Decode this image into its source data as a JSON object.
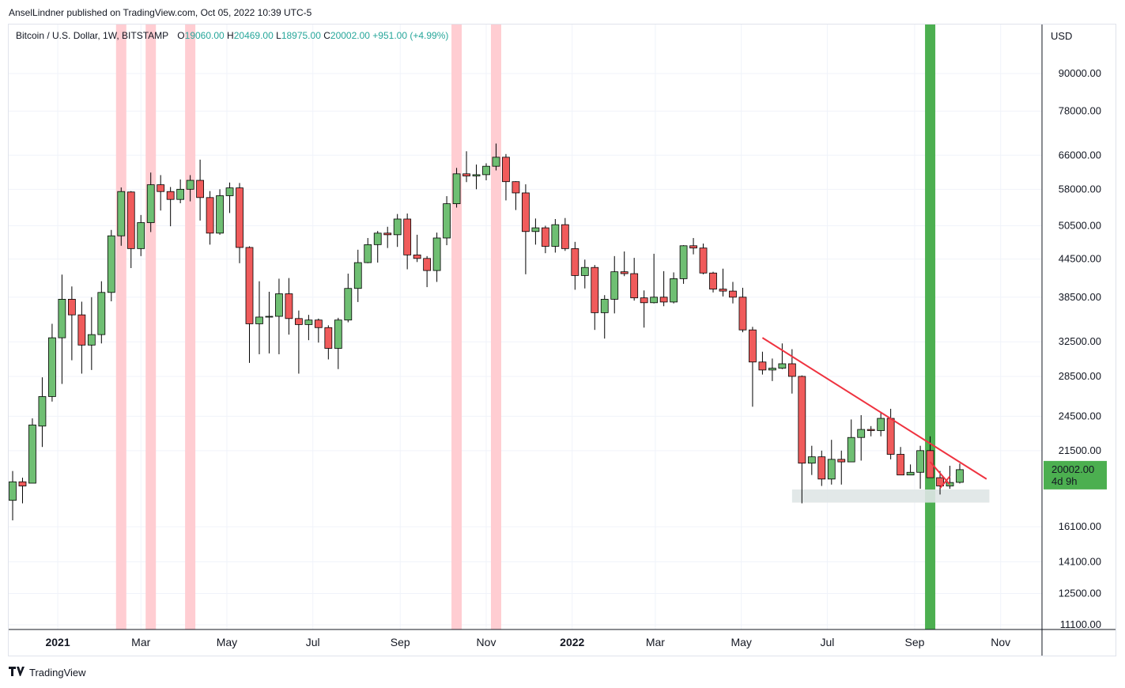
{
  "header": {
    "publish_line": "AnselLindner published on TradingView.com, Oct 05, 2022 10:39 UTC-5"
  },
  "legend": {
    "symbol": "Bitcoin / U.S. Dollar, 1W, BITSTAMP",
    "open_label": "O",
    "open": "19060.00",
    "high_label": "H",
    "high": "20469.00",
    "low_label": "L",
    "low": "18975.00",
    "close_label": "C",
    "close": "20002.00",
    "change": "+951.00 (+4.99%)"
  },
  "footer": {
    "brand": "TradingView"
  },
  "colors": {
    "up": "#4caf50",
    "down": "#ef5350",
    "up_fill": "#6fbf73",
    "down_fill": "#f05b5b",
    "pink_band": "#ffcdd2",
    "green_band": "#4caf50",
    "trendline": "#ef3340",
    "support_zone": "#dfe6e6",
    "price_tag": "#4caf50"
  },
  "chart_data": {
    "type": "candlestick",
    "title": "Bitcoin / U.S. Dollar, 1W, BITSTAMP",
    "y_axis_title": "USD",
    "y_scale": "log",
    "ylim": [
      11100,
      105000
    ],
    "y_ticks": [
      "90000.00",
      "78000.00",
      "66000.00",
      "58000.00",
      "50500.00",
      "44500.00",
      "38500.00",
      "32500.00",
      "28500.00",
      "24500.00",
      "21500.00",
      "16100.00",
      "14100.00",
      "12500.00",
      "11100.00"
    ],
    "x_ticks": [
      {
        "label": "2021",
        "date": "2021-01-01",
        "bold": true
      },
      {
        "label": "Mar",
        "date": "2021-03-01"
      },
      {
        "label": "May",
        "date": "2021-05-01"
      },
      {
        "label": "Jul",
        "date": "2021-07-01"
      },
      {
        "label": "Sep",
        "date": "2021-09-01"
      },
      {
        "label": "Nov",
        "date": "2021-11-01"
      },
      {
        "label": "2022",
        "date": "2022-01-01",
        "bold": true
      },
      {
        "label": "Mar",
        "date": "2022-03-01"
      },
      {
        "label": "May",
        "date": "2022-05-01"
      },
      {
        "label": "Jul",
        "date": "2022-07-01"
      },
      {
        "label": "Sep",
        "date": "2022-09-01"
      },
      {
        "label": "Nov",
        "date": "2022-11-01"
      }
    ],
    "x_start": "2020-11-29",
    "x_end": "2022-11-30",
    "current_price": {
      "value": "20002.00",
      "countdown": "4d 9h",
      "price": 20002
    },
    "highlight_weeks_pink": [
      "2021-02-15",
      "2021-03-08",
      "2021-04-05",
      "2021-10-11",
      "2021-11-08"
    ],
    "highlight_weeks_green": [
      "2022-09-12"
    ],
    "trendlines": [
      {
        "from": {
          "date": "2022-05-16",
          "price": 33000
        },
        "to": {
          "date": "2022-10-22",
          "price": 19300
        }
      },
      {
        "from": {
          "date": "2022-09-12",
          "price": 20600
        },
        "to": {
          "date": "2022-09-26",
          "price": 18900
        }
      },
      {
        "from": {
          "date": "2022-09-19",
          "price": 18650
        },
        "to": {
          "date": "2022-09-26",
          "price": 19500
        }
      }
    ],
    "zones": [
      {
        "from_date": "2022-06-06",
        "to_date": "2022-10-24",
        "low": 17650,
        "high": 18550
      }
    ],
    "candles": [
      {
        "date": "2020-11-30",
        "o": 17800,
        "h": 19900,
        "l": 16500,
        "c": 19100
      },
      {
        "date": "2020-12-07",
        "o": 19100,
        "h": 19400,
        "l": 17600,
        "c": 18800
      },
      {
        "date": "2020-12-14",
        "o": 19000,
        "h": 24300,
        "l": 19000,
        "c": 23700
      },
      {
        "date": "2020-12-21",
        "o": 23600,
        "h": 28400,
        "l": 21800,
        "c": 26400
      },
      {
        "date": "2020-12-28",
        "o": 26400,
        "h": 34800,
        "l": 25900,
        "c": 33000
      },
      {
        "date": "2021-01-04",
        "o": 33000,
        "h": 41950,
        "l": 27700,
        "c": 38200
      },
      {
        "date": "2021-01-11",
        "o": 38200,
        "h": 40100,
        "l": 30300,
        "c": 36000
      },
      {
        "date": "2021-01-18",
        "o": 36000,
        "h": 37850,
        "l": 28800,
        "c": 32100
      },
      {
        "date": "2021-01-25",
        "o": 32100,
        "h": 38500,
        "l": 29200,
        "c": 33400
      },
      {
        "date": "2021-02-01",
        "o": 33400,
        "h": 40900,
        "l": 32300,
        "c": 39200
      },
      {
        "date": "2021-02-08",
        "o": 39200,
        "h": 49700,
        "l": 37900,
        "c": 48600
      },
      {
        "date": "2021-02-15",
        "o": 48600,
        "h": 58400,
        "l": 46800,
        "c": 57500
      },
      {
        "date": "2021-02-22",
        "o": 57400,
        "h": 57600,
        "l": 43000,
        "c": 46300
      },
      {
        "date": "2021-03-01",
        "o": 46300,
        "h": 52600,
        "l": 45000,
        "c": 51100
      },
      {
        "date": "2021-03-08",
        "o": 51100,
        "h": 61800,
        "l": 49300,
        "c": 59000
      },
      {
        "date": "2021-03-15",
        "o": 59000,
        "h": 61200,
        "l": 53500,
        "c": 57500
      },
      {
        "date": "2021-03-22",
        "o": 57500,
        "h": 58500,
        "l": 50400,
        "c": 55800
      },
      {
        "date": "2021-03-29",
        "o": 55800,
        "h": 60200,
        "l": 55000,
        "c": 58000
      },
      {
        "date": "2021-04-05",
        "o": 58000,
        "h": 61200,
        "l": 55400,
        "c": 60000
      },
      {
        "date": "2021-04-12",
        "o": 60000,
        "h": 64900,
        "l": 51500,
        "c": 56200
      },
      {
        "date": "2021-04-19",
        "o": 56200,
        "h": 57600,
        "l": 47000,
        "c": 49100
      },
      {
        "date": "2021-04-26",
        "o": 49100,
        "h": 58000,
        "l": 48800,
        "c": 56600
      },
      {
        "date": "2021-05-03",
        "o": 56600,
        "h": 59500,
        "l": 53000,
        "c": 58300
      },
      {
        "date": "2021-05-10",
        "o": 58300,
        "h": 59400,
        "l": 43800,
        "c": 46500
      },
      {
        "date": "2021-05-17",
        "o": 46500,
        "h": 46700,
        "l": 30000,
        "c": 34800
      },
      {
        "date": "2021-05-24",
        "o": 34800,
        "h": 40900,
        "l": 31000,
        "c": 35700
      },
      {
        "date": "2021-05-31",
        "o": 35700,
        "h": 39300,
        "l": 31100,
        "c": 35800
      },
      {
        "date": "2021-06-07",
        "o": 35800,
        "h": 41300,
        "l": 31000,
        "c": 39000
      },
      {
        "date": "2021-06-14",
        "o": 39000,
        "h": 41400,
        "l": 33400,
        "c": 35500
      },
      {
        "date": "2021-06-21",
        "o": 35500,
        "h": 36600,
        "l": 28800,
        "c": 34700
      },
      {
        "date": "2021-06-28",
        "o": 34700,
        "h": 36000,
        "l": 32700,
        "c": 35300
      },
      {
        "date": "2021-07-05",
        "o": 35300,
        "h": 35500,
        "l": 32400,
        "c": 34300
      },
      {
        "date": "2021-07-12",
        "o": 34300,
        "h": 34600,
        "l": 30400,
        "c": 31700
      },
      {
        "date": "2021-07-19",
        "o": 31700,
        "h": 35600,
        "l": 29300,
        "c": 35300
      },
      {
        "date": "2021-07-26",
        "o": 35300,
        "h": 42100,
        "l": 35000,
        "c": 39800
      },
      {
        "date": "2021-08-02",
        "o": 39800,
        "h": 46100,
        "l": 37800,
        "c": 43900
      },
      {
        "date": "2021-08-09",
        "o": 43900,
        "h": 48200,
        "l": 43800,
        "c": 47000
      },
      {
        "date": "2021-08-16",
        "o": 47000,
        "h": 49500,
        "l": 43900,
        "c": 49100
      },
      {
        "date": "2021-08-23",
        "o": 49100,
        "h": 50300,
        "l": 46400,
        "c": 48800
      },
      {
        "date": "2021-08-30",
        "o": 48800,
        "h": 52800,
        "l": 46600,
        "c": 51800
      },
      {
        "date": "2021-09-06",
        "o": 51800,
        "h": 52900,
        "l": 42800,
        "c": 45200
      },
      {
        "date": "2021-09-13",
        "o": 45200,
        "h": 48800,
        "l": 44000,
        "c": 44600
      },
      {
        "date": "2021-09-20",
        "o": 44600,
        "h": 45000,
        "l": 40000,
        "c": 42600
      },
      {
        "date": "2021-09-27",
        "o": 42600,
        "h": 49200,
        "l": 40800,
        "c": 48200
      },
      {
        "date": "2021-10-04",
        "o": 48200,
        "h": 56500,
        "l": 46900,
        "c": 54900
      },
      {
        "date": "2021-10-11",
        "o": 54900,
        "h": 62900,
        "l": 54100,
        "c": 61500
      },
      {
        "date": "2021-10-18",
        "o": 61500,
        "h": 67000,
        "l": 59600,
        "c": 61000
      },
      {
        "date": "2021-10-25",
        "o": 61000,
        "h": 63700,
        "l": 58000,
        "c": 61300
      },
      {
        "date": "2021-11-01",
        "o": 61300,
        "h": 64000,
        "l": 60000,
        "c": 63300
      },
      {
        "date": "2021-11-08",
        "o": 63300,
        "h": 69000,
        "l": 62300,
        "c": 65500
      },
      {
        "date": "2021-11-15",
        "o": 65500,
        "h": 66300,
        "l": 55600,
        "c": 59700
      },
      {
        "date": "2021-11-22",
        "o": 59700,
        "h": 59800,
        "l": 53600,
        "c": 57200
      },
      {
        "date": "2021-11-29",
        "o": 57200,
        "h": 59100,
        "l": 42000,
        "c": 49400
      },
      {
        "date": "2021-12-06",
        "o": 49400,
        "h": 51900,
        "l": 47000,
        "c": 50100
      },
      {
        "date": "2021-12-13",
        "o": 50100,
        "h": 50500,
        "l": 45500,
        "c": 46700
      },
      {
        "date": "2021-12-20",
        "o": 46700,
        "h": 51800,
        "l": 45600,
        "c": 50700
      },
      {
        "date": "2021-12-27",
        "o": 50700,
        "h": 52000,
        "l": 45900,
        "c": 46300
      },
      {
        "date": "2022-01-03",
        "o": 46300,
        "h": 47500,
        "l": 39600,
        "c": 41800
      },
      {
        "date": "2022-01-10",
        "o": 41800,
        "h": 44400,
        "l": 39800,
        "c": 43100
      },
      {
        "date": "2022-01-17",
        "o": 43100,
        "h": 43500,
        "l": 34000,
        "c": 36300
      },
      {
        "date": "2022-01-24",
        "o": 36300,
        "h": 38800,
        "l": 32900,
        "c": 38200
      },
      {
        "date": "2022-01-31",
        "o": 38200,
        "h": 45000,
        "l": 36200,
        "c": 42400
      },
      {
        "date": "2022-02-07",
        "o": 42400,
        "h": 45800,
        "l": 41700,
        "c": 42100
      },
      {
        "date": "2022-02-14",
        "o": 42100,
        "h": 44700,
        "l": 38000,
        "c": 38400
      },
      {
        "date": "2022-02-21",
        "o": 38400,
        "h": 39500,
        "l": 34300,
        "c": 37700
      },
      {
        "date": "2022-02-28",
        "o": 37700,
        "h": 45400,
        "l": 37600,
        "c": 38500
      },
      {
        "date": "2022-03-07",
        "o": 38500,
        "h": 42500,
        "l": 37200,
        "c": 37800
      },
      {
        "date": "2022-03-14",
        "o": 37800,
        "h": 42300,
        "l": 37600,
        "c": 41300
      },
      {
        "date": "2022-03-21",
        "o": 41300,
        "h": 46900,
        "l": 40500,
        "c": 46800
      },
      {
        "date": "2022-03-28",
        "o": 46800,
        "h": 48200,
        "l": 45300,
        "c": 46400
      },
      {
        "date": "2022-04-04",
        "o": 46400,
        "h": 47200,
        "l": 42000,
        "c": 42200
      },
      {
        "date": "2022-04-11",
        "o": 42200,
        "h": 42400,
        "l": 39200,
        "c": 39700
      },
      {
        "date": "2022-04-18",
        "o": 39700,
        "h": 42900,
        "l": 38600,
        "c": 39400
      },
      {
        "date": "2022-04-25",
        "o": 39400,
        "h": 40800,
        "l": 37600,
        "c": 38500
      },
      {
        "date": "2022-05-02",
        "o": 38500,
        "h": 39900,
        "l": 33700,
        "c": 34000
      },
      {
        "date": "2022-05-09",
        "o": 34000,
        "h": 34400,
        "l": 25400,
        "c": 30100
      },
      {
        "date": "2022-05-16",
        "o": 30100,
        "h": 31300,
        "l": 28700,
        "c": 29200
      },
      {
        "date": "2022-05-23",
        "o": 29200,
        "h": 30500,
        "l": 28000,
        "c": 29400
      },
      {
        "date": "2022-05-30",
        "o": 29400,
        "h": 32300,
        "l": 29300,
        "c": 29900
      },
      {
        "date": "2022-06-06",
        "o": 29900,
        "h": 31600,
        "l": 26700,
        "c": 28500
      },
      {
        "date": "2022-06-13",
        "o": 28500,
        "h": 28600,
        "l": 17600,
        "c": 20500
      },
      {
        "date": "2022-06-20",
        "o": 20500,
        "h": 21900,
        "l": 19600,
        "c": 21000
      },
      {
        "date": "2022-06-27",
        "o": 21000,
        "h": 21500,
        "l": 18800,
        "c": 19300
      },
      {
        "date": "2022-07-04",
        "o": 19300,
        "h": 22400,
        "l": 18900,
        "c": 20800
      },
      {
        "date": "2022-07-11",
        "o": 20800,
        "h": 21500,
        "l": 18900,
        "c": 20600
      },
      {
        "date": "2022-07-18",
        "o": 20600,
        "h": 24200,
        "l": 20600,
        "c": 22600
      },
      {
        "date": "2022-07-25",
        "o": 22600,
        "h": 24600,
        "l": 20700,
        "c": 23300
      },
      {
        "date": "2022-08-01",
        "o": 23300,
        "h": 23600,
        "l": 22700,
        "c": 23200
      },
      {
        "date": "2022-08-08",
        "o": 23200,
        "h": 24900,
        "l": 22700,
        "c": 24300
      },
      {
        "date": "2022-08-15",
        "o": 24300,
        "h": 25200,
        "l": 20800,
        "c": 21200
      },
      {
        "date": "2022-08-22",
        "o": 21200,
        "h": 21800,
        "l": 19600,
        "c": 19600
      },
      {
        "date": "2022-08-29",
        "o": 19600,
        "h": 20400,
        "l": 19600,
        "c": 19800
      },
      {
        "date": "2022-09-05",
        "o": 19800,
        "h": 21900,
        "l": 18600,
        "c": 21500
      },
      {
        "date": "2022-09-12",
        "o": 21500,
        "h": 22700,
        "l": 19400,
        "c": 19400
      },
      {
        "date": "2022-09-19",
        "o": 19400,
        "h": 19900,
        "l": 18200,
        "c": 18800
      },
      {
        "date": "2022-09-26",
        "o": 18800,
        "h": 20300,
        "l": 18600,
        "c": 19050
      },
      {
        "date": "2022-10-03",
        "o": 19060,
        "h": 20469,
        "l": 18975,
        "c": 20002
      }
    ]
  }
}
